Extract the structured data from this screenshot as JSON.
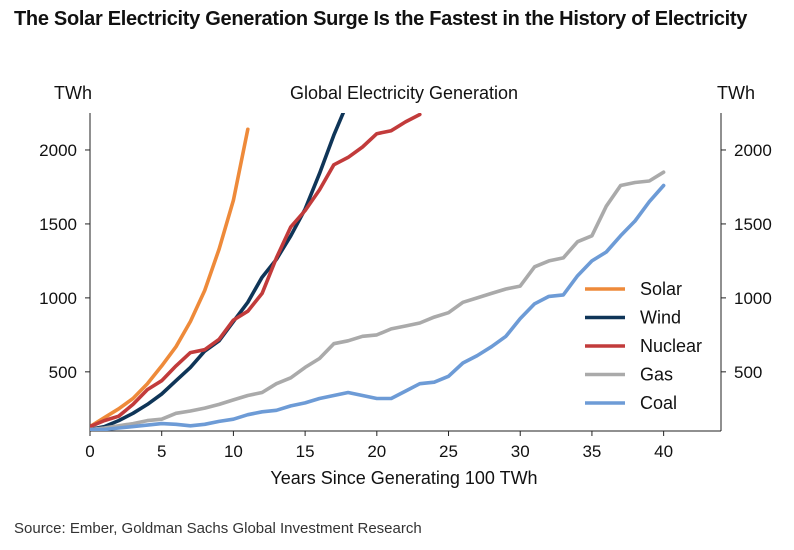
{
  "headline": "The Solar Electricity Generation Surge Is the Fastest in the History of Electricity",
  "source": "Source: Ember, Goldman Sachs Global Investment Research",
  "chart_data": {
    "type": "line",
    "title": "Global Electricity Generation",
    "xlabel": "Years Since Generating 100 TWh",
    "ylabel_left": "TWh",
    "ylabel_right": "TWh",
    "xlim": [
      0,
      44
    ],
    "ylim": [
      100,
      2250
    ],
    "x_ticks": [
      0,
      5,
      10,
      15,
      20,
      25,
      30,
      35,
      40
    ],
    "y_ticks": [
      500,
      1000,
      1500,
      2000
    ],
    "legend_position": "center-right",
    "series": [
      {
        "name": "Solar",
        "color": "#EE8A3A",
        "x": [
          0,
          1,
          2,
          3,
          4,
          5,
          6,
          7,
          8,
          9,
          10,
          11
        ],
        "values": [
          130,
          190,
          250,
          320,
          420,
          540,
          670,
          840,
          1050,
          1330,
          1660,
          2140
        ]
      },
      {
        "name": "Wind",
        "color": "#0F3558",
        "x": [
          0,
          1,
          2,
          3,
          4,
          5,
          6,
          7,
          8,
          9,
          10,
          11,
          12,
          13,
          14,
          15,
          16,
          17,
          17.7
        ],
        "values": [
          110,
          130,
          170,
          220,
          280,
          350,
          440,
          530,
          640,
          710,
          840,
          970,
          1140,
          1260,
          1420,
          1600,
          1840,
          2100,
          2260
        ]
      },
      {
        "name": "Nuclear",
        "color": "#C23B3B",
        "x": [
          0,
          1,
          2,
          3,
          4,
          5,
          6,
          7,
          8,
          9,
          10,
          11,
          12,
          13,
          14,
          15,
          16,
          17,
          18,
          19,
          20,
          21,
          22,
          23
        ],
        "values": [
          130,
          170,
          200,
          280,
          380,
          440,
          540,
          630,
          650,
          720,
          850,
          910,
          1030,
          1270,
          1480,
          1590,
          1730,
          1900,
          1950,
          2020,
          2110,
          2130,
          2190,
          2240
        ]
      },
      {
        "name": "Gas",
        "color": "#AAAAAA",
        "x": [
          0,
          1,
          2,
          3,
          4,
          5,
          6,
          7,
          8,
          9,
          10,
          11,
          12,
          13,
          14,
          15,
          16,
          17,
          18,
          19,
          20,
          21,
          22,
          23,
          24,
          25,
          26,
          27,
          28,
          29,
          30,
          31,
          32,
          33,
          34,
          35,
          36,
          37,
          38,
          39,
          40
        ],
        "values": [
          110,
          120,
          135,
          150,
          170,
          180,
          220,
          235,
          255,
          280,
          310,
          340,
          360,
          420,
          460,
          530,
          590,
          690,
          710,
          740,
          750,
          790,
          810,
          830,
          870,
          900,
          970,
          1000,
          1030,
          1060,
          1080,
          1210,
          1250,
          1270,
          1380,
          1420,
          1620,
          1760,
          1780,
          1790,
          1850
        ]
      },
      {
        "name": "Coal",
        "color": "#6D9BD6",
        "x": [
          0,
          1,
          2,
          3,
          4,
          5,
          6,
          7,
          8,
          9,
          10,
          11,
          12,
          13,
          14,
          15,
          16,
          17,
          18,
          19,
          20,
          21,
          22,
          23,
          24,
          25,
          26,
          27,
          28,
          29,
          30,
          31,
          32,
          33,
          34,
          35,
          36,
          37,
          38,
          39,
          40
        ],
        "values": [
          110,
          110,
          120,
          130,
          140,
          150,
          145,
          135,
          145,
          165,
          180,
          210,
          230,
          240,
          270,
          290,
          320,
          340,
          360,
          340,
          320,
          320,
          370,
          420,
          430,
          470,
          560,
          610,
          670,
          740,
          860,
          960,
          1010,
          1020,
          1150,
          1250,
          1310,
          1420,
          1520,
          1650,
          1760
        ]
      }
    ]
  }
}
